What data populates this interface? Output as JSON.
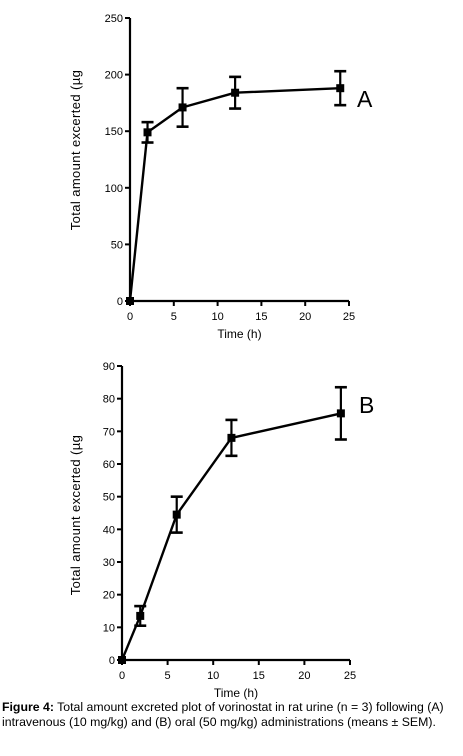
{
  "chart_data": [
    {
      "type": "line",
      "panel_label": "A",
      "xlabel": "Time  (h)",
      "ylabel": "Total amount excerted (µg",
      "xlim": [
        0,
        25
      ],
      "ylim": [
        0,
        250
      ],
      "xticks": [
        0,
        5,
        10,
        15,
        20,
        25
      ],
      "yticks": [
        0,
        50,
        100,
        150,
        200,
        250
      ],
      "error_bars": true,
      "series": [
        {
          "x": [
            0,
            2,
            6,
            12,
            24
          ],
          "y": [
            0,
            149,
            171,
            184,
            188
          ],
          "error": [
            0,
            9,
            17,
            14,
            15
          ]
        }
      ]
    },
    {
      "type": "line",
      "panel_label": "B",
      "xlabel": "Time  (h)",
      "ylabel": "Total amount excerted  (µg",
      "xlim": [
        0,
        25
      ],
      "ylim": [
        0,
        90
      ],
      "xticks": [
        0,
        5,
        10,
        15,
        20,
        25
      ],
      "yticks": [
        0,
        10,
        20,
        30,
        40,
        50,
        60,
        70,
        80,
        90
      ],
      "error_bars": true,
      "series": [
        {
          "x": [
            0,
            2,
            6,
            12,
            24
          ],
          "y": [
            0,
            13.5,
            44.5,
            68,
            75.5
          ],
          "error": [
            0,
            3,
            5.5,
            5.5,
            8
          ]
        }
      ]
    }
  ],
  "caption": {
    "lead": "Figure 4:",
    "text": " Total amount excreted plot of vorinostat in rat urine (n = 3) following (A) intravenous (10 mg/kg) and (B) oral (50 mg/kg) administrations (means ± SEM)."
  }
}
